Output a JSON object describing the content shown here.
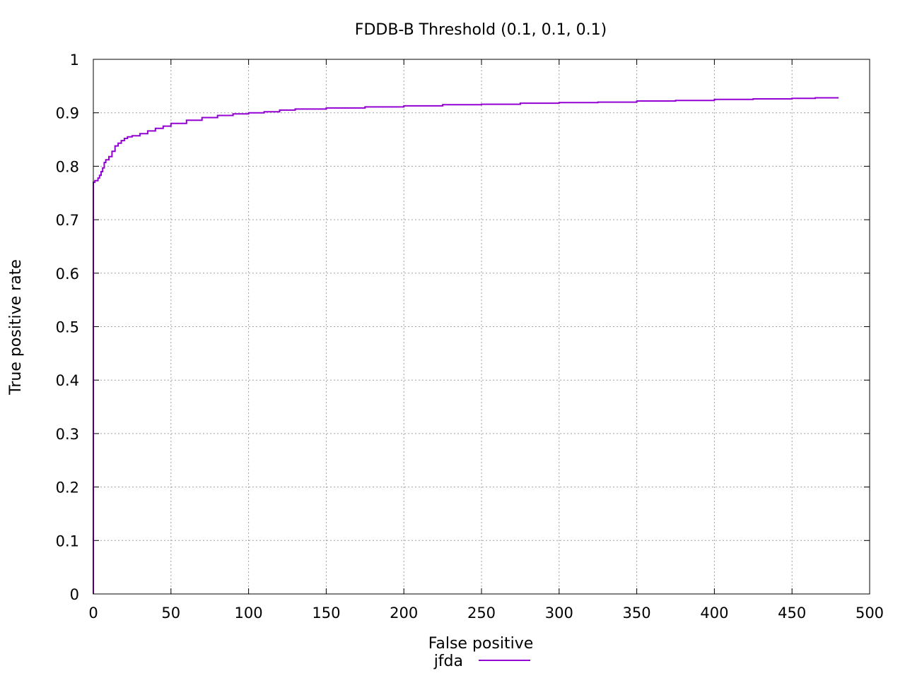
{
  "chart_data": {
    "type": "line",
    "title": "FDDB-B Threshold (0.1, 0.1, 0.1)",
    "xlabel": "False positive",
    "ylabel": "True positive rate",
    "xlim": [
      0,
      500
    ],
    "ylim": [
      0,
      1
    ],
    "xticks": [
      0,
      50,
      100,
      150,
      200,
      250,
      300,
      350,
      400,
      450,
      500
    ],
    "yticks": [
      0,
      0.1,
      0.2,
      0.3,
      0.4,
      0.5,
      0.6,
      0.7,
      0.8,
      0.9,
      1
    ],
    "grid": true,
    "legend_position": "bottom-center",
    "series": [
      {
        "name": "jfda",
        "color": "#9400d3",
        "x": [
          0,
          0,
          0,
          0,
          0,
          0,
          1,
          3,
          4,
          5,
          6,
          7,
          8,
          10,
          12,
          14,
          16,
          18,
          20,
          22,
          25,
          30,
          35,
          40,
          45,
          50,
          60,
          70,
          80,
          90,
          100,
          110,
          120,
          130,
          150,
          175,
          200,
          225,
          250,
          275,
          300,
          325,
          350,
          375,
          400,
          425,
          450,
          465,
          480
        ],
        "y": [
          0,
          0.19,
          0.35,
          0.565,
          0.72,
          0.77,
          0.773,
          0.778,
          0.783,
          0.79,
          0.797,
          0.807,
          0.812,
          0.818,
          0.828,
          0.838,
          0.843,
          0.848,
          0.852,
          0.855,
          0.857,
          0.861,
          0.866,
          0.871,
          0.875,
          0.88,
          0.886,
          0.891,
          0.895,
          0.898,
          0.9,
          0.902,
          0.905,
          0.907,
          0.909,
          0.911,
          0.913,
          0.915,
          0.916,
          0.918,
          0.919,
          0.92,
          0.922,
          0.923,
          0.925,
          0.926,
          0.927,
          0.928,
          0.928
        ]
      }
    ]
  }
}
